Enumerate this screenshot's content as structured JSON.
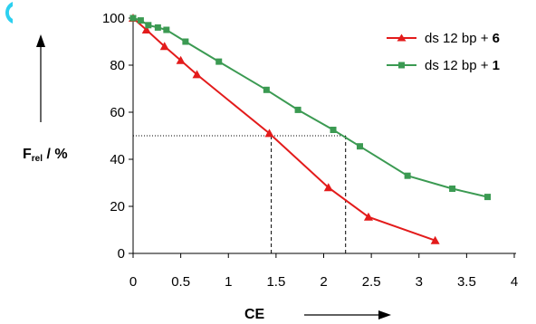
{
  "chart_data": {
    "type": "line",
    "xlabel": "CE",
    "ylabel": "F",
    "ylabel_sub": "rel",
    "ylabel_suffix": " / %",
    "xlim": [
      0,
      4
    ],
    "ylim": [
      0,
      100
    ],
    "x_ticks": [
      "0",
      "0.5",
      "1",
      "1.5",
      "2",
      "2.5",
      "3",
      "3.5",
      "4"
    ],
    "y_ticks": [
      "0",
      "20",
      "40",
      "60",
      "80",
      "100"
    ],
    "grid": false,
    "legend_position": "top-right",
    "colors": {
      "red": "#e31b1b",
      "green": "#3b9a52"
    },
    "series": [
      {
        "name_prefix": "ds 12 bp + ",
        "name_bold": "6",
        "color": "#e31b1b",
        "marker": "triangle",
        "x": [
          0,
          0.14,
          0.33,
          0.5,
          0.67,
          1.43,
          2.05,
          2.47,
          3.17
        ],
        "values": [
          100,
          95,
          88,
          82,
          76,
          51,
          28,
          15.5,
          5.5
        ]
      },
      {
        "name_prefix": "ds 12 bp + ",
        "name_bold": "1",
        "color": "#3b9a52",
        "marker": "square",
        "x": [
          0,
          0.08,
          0.16,
          0.26,
          0.35,
          0.55,
          0.9,
          1.4,
          1.73,
          2.1,
          2.38,
          2.88,
          3.35,
          3.72
        ],
        "values": [
          100,
          99,
          97,
          96,
          95,
          90,
          81.5,
          69.5,
          61,
          52.5,
          45.5,
          33,
          27.5,
          24
        ]
      }
    ],
    "annotations": [
      {
        "type": "hline",
        "y": 50,
        "x_range": [
          0,
          2.23
        ],
        "style": "dotted"
      },
      {
        "type": "vline",
        "x": 1.45,
        "y_range": [
          0,
          50
        ],
        "style": "dashed"
      },
      {
        "type": "vline",
        "x": 2.23,
        "y_range": [
          0,
          50
        ],
        "style": "dashed"
      }
    ]
  }
}
